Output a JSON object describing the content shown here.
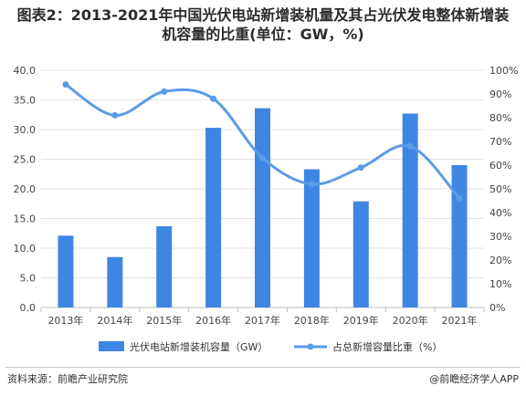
{
  "title_line1": "图表2：2013-2021年中国光伏电站新增装机量及其占光伏发电整体新增装",
  "title_line2": "机容量的比重(单位：GW，%)",
  "source_text": "资料来源：前瞻产业研究院",
  "brand_text": "@前瞻经济学人APP",
  "colors": {
    "bar": "#3f86e3",
    "line": "#5b9ce6",
    "grid": "#e3e3e3",
    "axis": "#bfbfbf"
  },
  "chart_data": {
    "type": "bar",
    "categories": [
      "2013年",
      "2014年",
      "2015年",
      "2016年",
      "2017年",
      "2018年",
      "2019年",
      "2020年",
      "2021年"
    ],
    "series": [
      {
        "name": "光伏电站新增装机容量（GW）",
        "type": "bar",
        "axis": "left",
        "values": [
          12.1,
          8.5,
          13.7,
          30.3,
          33.6,
          23.3,
          17.9,
          32.7,
          24.0
        ]
      },
      {
        "name": "占总新增容量比重（%）",
        "type": "line",
        "axis": "right",
        "values": [
          0.94,
          0.81,
          0.91,
          0.88,
          0.63,
          0.52,
          0.59,
          0.68,
          0.46
        ]
      }
    ],
    "y_left": {
      "min": 0,
      "max": 40,
      "ticks": [
        "0.0",
        "5.0",
        "10.0",
        "15.0",
        "20.0",
        "25.0",
        "30.0",
        "35.0",
        "40.0"
      ]
    },
    "y_right": {
      "min": 0,
      "max": 1,
      "ticks": [
        "0%",
        "10%",
        "20%",
        "30%",
        "40%",
        "50%",
        "60%",
        "70%",
        "80%",
        "90%",
        "100%"
      ]
    },
    "grid": true,
    "legend": "bottom"
  }
}
